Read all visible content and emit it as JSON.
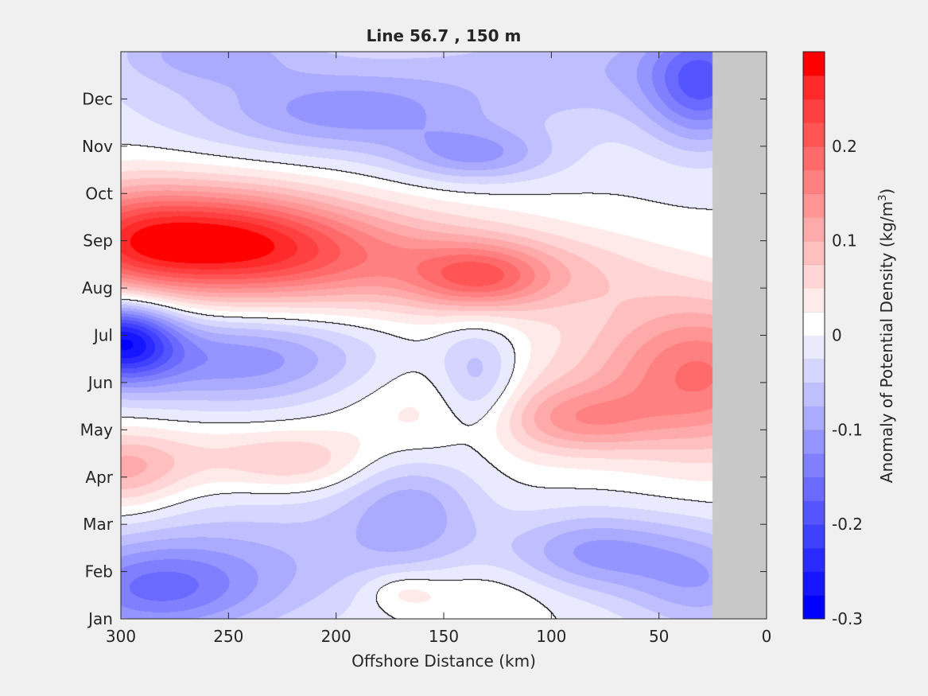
{
  "chart_data": {
    "type": "heatmap",
    "title": "Line 56.7 , 150 m",
    "xlabel": "Offshore Distance (km)",
    "ylabel": "",
    "xlim": [
      300,
      0
    ],
    "x_ticks": [
      300,
      250,
      200,
      150,
      100,
      50,
      0
    ],
    "y_ticks": [
      "Jan",
      "Feb",
      "Mar",
      "Apr",
      "May",
      "Jun",
      "Jul",
      "Aug",
      "Sep",
      "Oct",
      "Nov",
      "Dec"
    ],
    "colorbar": {
      "label_main": "Anomaly of Potential Density (kg/m",
      "label_sup": "3",
      "label_close": ")",
      "range": [
        -0.3,
        0.3
      ],
      "ticks": [
        "0.2",
        "0.1",
        "0",
        "-0.1",
        "-0.2",
        "-0.3"
      ],
      "tick_values": [
        0.2,
        0.1,
        0,
        -0.1,
        -0.2,
        -0.3
      ],
      "levels": [
        {
          "from": -0.3,
          "to": -0.275,
          "color": "#0000ff"
        },
        {
          "from": -0.275,
          "to": -0.25,
          "color": "#1515ff"
        },
        {
          "from": -0.25,
          "to": -0.225,
          "color": "#2a2aff"
        },
        {
          "from": -0.225,
          "to": -0.2,
          "color": "#4040ff"
        },
        {
          "from": -0.2,
          "to": -0.175,
          "color": "#5555ff"
        },
        {
          "from": -0.175,
          "to": -0.15,
          "color": "#6a6aff"
        },
        {
          "from": -0.15,
          "to": -0.125,
          "color": "#8080ff"
        },
        {
          "from": -0.125,
          "to": -0.1,
          "color": "#9595ff"
        },
        {
          "from": -0.1,
          "to": -0.075,
          "color": "#aaaaff"
        },
        {
          "from": -0.075,
          "to": -0.05,
          "color": "#bfbfff"
        },
        {
          "from": -0.05,
          "to": -0.025,
          "color": "#d5d5ff"
        },
        {
          "from": -0.025,
          "to": 0,
          "color": "#eaeaff"
        },
        {
          "from": 0,
          "to": 0.025,
          "color": "#ffffff"
        },
        {
          "from": 0.025,
          "to": 0.05,
          "color": "#ffeaea"
        },
        {
          "from": 0.05,
          "to": 0.075,
          "color": "#ffd5d5"
        },
        {
          "from": 0.075,
          "to": 0.1,
          "color": "#ffbfbf"
        },
        {
          "from": 0.1,
          "to": 0.125,
          "color": "#ffaaaa"
        },
        {
          "from": 0.125,
          "to": 0.15,
          "color": "#ff9595"
        },
        {
          "from": 0.15,
          "to": 0.175,
          "color": "#ff8080"
        },
        {
          "from": 0.175,
          "to": 0.2,
          "color": "#ff6a6a"
        },
        {
          "from": 0.2,
          "to": 0.225,
          "color": "#ff5555"
        },
        {
          "from": 0.225,
          "to": 0.25,
          "color": "#ff4040"
        },
        {
          "from": 0.25,
          "to": 0.275,
          "color": "#ff2a2a"
        },
        {
          "from": 0.275,
          "to": 0.3,
          "color": "#ff0000"
        }
      ]
    },
    "field": {
      "description_units": "x in km offshore, y in months (0=Jan ... 12=end of Dec), value in kg/m^3",
      "nodata_x_below": 25,
      "nodata_color": "#c8c8c8",
      "zero_contour_color": "#000000",
      "features": [
        {
          "x": 258,
          "y": 8.0,
          "value": 0.24,
          "sx": 42,
          "sy": 0.8
        },
        {
          "x": 190,
          "y": 7.6,
          "value": 0.12,
          "sx": 55,
          "sy": 0.8
        },
        {
          "x": 134,
          "y": 7.2,
          "value": 0.13,
          "sx": 22,
          "sy": 0.5
        },
        {
          "x": 95,
          "y": 7.3,
          "value": 0.05,
          "sx": 35,
          "sy": 0.6
        },
        {
          "x": 300,
          "y": 8.0,
          "value": 0.1,
          "sx": 25,
          "sy": 0.9
        },
        {
          "x": 300,
          "y": 5.9,
          "value": -0.24,
          "sx": 18,
          "sy": 0.6
        },
        {
          "x": 245,
          "y": 5.5,
          "value": -0.12,
          "sx": 45,
          "sy": 0.7
        },
        {
          "x": 134,
          "y": 5.0,
          "value": -0.09,
          "sx": 14,
          "sy": 0.9
        },
        {
          "x": 25,
          "y": 5.1,
          "value": 0.14,
          "sx": 30,
          "sy": 1.2
        },
        {
          "x": 85,
          "y": 4.2,
          "value": 0.1,
          "sx": 25,
          "sy": 0.5
        },
        {
          "x": 60,
          "y": 5.4,
          "value": 0.06,
          "sx": 35,
          "sy": 1.0
        },
        {
          "x": 145,
          "y": 4.4,
          "value": 0.05,
          "sx": 40,
          "sy": 0.9
        },
        {
          "x": 300,
          "y": 3.1,
          "value": 0.09,
          "sx": 20,
          "sy": 0.6
        },
        {
          "x": 250,
          "y": 3.4,
          "value": 0.05,
          "sx": 45,
          "sy": 0.5
        },
        {
          "x": 218,
          "y": 3.3,
          "value": 0.04,
          "sx": 20,
          "sy": 0.4
        },
        {
          "x": 285,
          "y": 0.6,
          "value": -0.13,
          "sx": 35,
          "sy": 0.7
        },
        {
          "x": 230,
          "y": 1.3,
          "value": -0.06,
          "sx": 60,
          "sy": 1.0
        },
        {
          "x": 165,
          "y": 2.4,
          "value": -0.08,
          "sx": 22,
          "sy": 0.9
        },
        {
          "x": 80,
          "y": 1.4,
          "value": -0.1,
          "sx": 28,
          "sy": 0.6
        },
        {
          "x": 30,
          "y": 0.8,
          "value": -0.09,
          "sx": 25,
          "sy": 0.8
        },
        {
          "x": 170,
          "y": 0.6,
          "value": 0.04,
          "sx": 12,
          "sy": 0.3
        },
        {
          "x": 195,
          "y": 10.7,
          "value": -0.09,
          "sx": 45,
          "sy": 0.6
        },
        {
          "x": 135,
          "y": 9.8,
          "value": -0.09,
          "sx": 25,
          "sy": 0.4
        },
        {
          "x": 30,
          "y": 11.3,
          "value": -0.14,
          "sx": 18,
          "sy": 0.9
        },
        {
          "x": 260,
          "y": 12.0,
          "value": -0.07,
          "sx": 30,
          "sy": 0.5
        },
        {
          "x": 60,
          "y": 11.7,
          "value": -0.05,
          "sx": 60,
          "sy": 0.8
        },
        {
          "x": 180,
          "y": 11.4,
          "value": -0.03,
          "sx": 120,
          "sy": 1.2
        },
        {
          "x": 140,
          "y": 0.5,
          "value": 0.04,
          "sx": 30,
          "sy": 0.5
        }
      ]
    }
  }
}
